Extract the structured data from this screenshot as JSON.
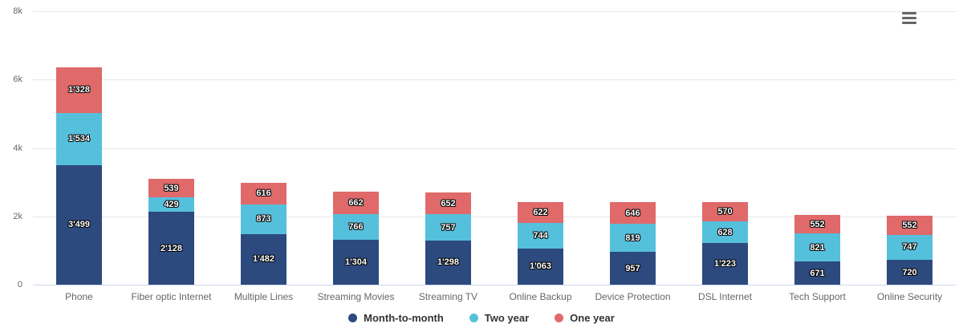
{
  "chart_data": {
    "type": "bar",
    "stacked": true,
    "title": "",
    "xlabel": "",
    "ylabel": "",
    "ylim": [
      0,
      8000
    ],
    "grid": true,
    "legend_position": "bottom",
    "thousands_separator": "'",
    "yticks": [
      {
        "value": 0,
        "label": "0"
      },
      {
        "value": 2000,
        "label": "2k"
      },
      {
        "value": 4000,
        "label": "4k"
      },
      {
        "value": 6000,
        "label": "6k"
      },
      {
        "value": 8000,
        "label": "8k"
      }
    ],
    "categories": [
      "Phone",
      "Fiber optic Internet",
      "Multiple Lines",
      "Streaming Movies",
      "Streaming TV",
      "Online Backup",
      "Device Protection",
      "DSL Internet",
      "Tech Support",
      "Online Security"
    ],
    "series": [
      {
        "name": "Month-to-month",
        "color": "#2C4A7E",
        "values": [
          3499,
          2128,
          1482,
          1304,
          1298,
          1063,
          957,
          1223,
          671,
          720
        ]
      },
      {
        "name": "Two year",
        "color": "#55C0DC",
        "values": [
          1534,
          429,
          873,
          766,
          757,
          744,
          819,
          628,
          821,
          747
        ]
      },
      {
        "name": "One year",
        "color": "#E0696A",
        "values": [
          1328,
          539,
          616,
          662,
          652,
          622,
          646,
          570,
          552,
          552
        ]
      }
    ],
    "colors": {
      "gridline": "#e6e6e6",
      "x_axis_line": "#ccd6eb",
      "tick_text": "#666666",
      "legend_text": "#333333",
      "data_label_text": "#ffffff"
    }
  },
  "controls": {
    "context_menu_icon": "hamburger-menu-icon"
  }
}
